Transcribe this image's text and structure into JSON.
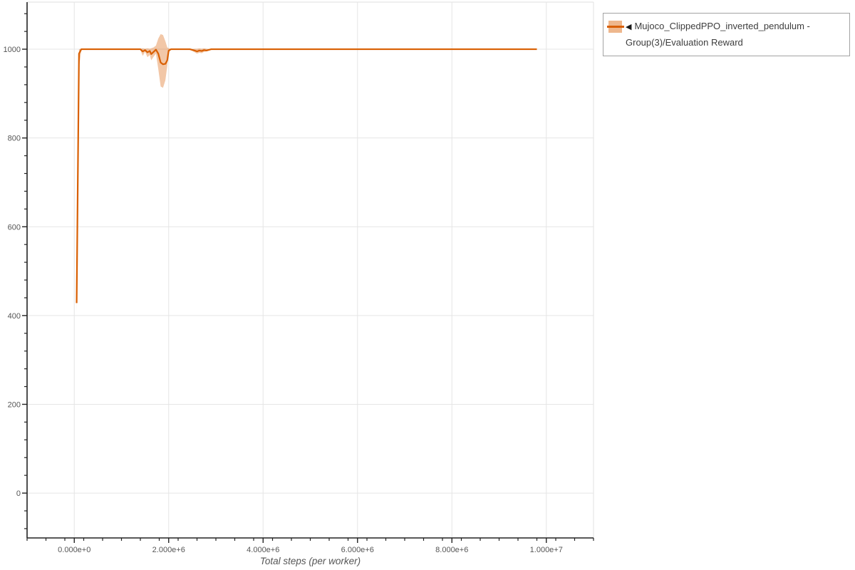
{
  "page": {
    "background": "#ffffff"
  },
  "legend": {
    "toggle_icon": "◀",
    "label": "Mujoco_ClippedPPO_inverted_pendulum - Group(3)/Evaluation Reward",
    "border_color": "#a3a3a3"
  },
  "chart_data": {
    "type": "line",
    "title": "",
    "xlabel": "Total steps (per worker)",
    "ylabel": "",
    "xlim": [
      -1000000,
      11000000
    ],
    "ylim": [
      -101,
      1106
    ],
    "grid": true,
    "legend_position": "top-right-outside",
    "axis_color": "#222222",
    "grid_color": "#e5e5e5",
    "tick_label_color": "#555555",
    "x_ticks": {
      "values": [
        0,
        2000000,
        4000000,
        6000000,
        8000000,
        10000000
      ],
      "labels": [
        "0.000e+0",
        "2.000e+6",
        "4.000e+6",
        "6.000e+6",
        "8.000e+6",
        "1.000e+7"
      ],
      "minor_step": 400000
    },
    "y_ticks": {
      "values": [
        0,
        200,
        400,
        600,
        800,
        1000
      ],
      "labels": [
        "0",
        "200",
        "400",
        "600",
        "800",
        "1000"
      ],
      "minor_step": 40
    },
    "series": [
      {
        "name": "Mujoco_ClippedPPO_inverted_pendulum - Group(3)/Evaluation Reward",
        "color": "#d95f02",
        "band_alpha": 0.35,
        "x": [
          50000,
          100000,
          150000,
          1400000,
          1450000,
          1500000,
          1550000,
          1600000,
          1630000,
          1680000,
          1730000,
          1780000,
          1830000,
          1880000,
          1930000,
          1970000,
          2000000,
          2050000,
          2450000,
          2550000,
          2600000,
          2650000,
          2700000,
          2750000,
          2800000,
          2900000,
          9800000
        ],
        "y": [
          428,
          990,
          1000,
          1000,
          995,
          998,
          993,
          996,
          989,
          994,
          999,
          990,
          970,
          966,
          967,
          975,
          997,
          1000,
          1000,
          997,
          995,
          997,
          996,
          998,
          997,
          1000,
          1000
        ]
      }
    ],
    "bands": [
      {
        "x": [
          50000,
          100000,
          150000
        ],
        "upper": [
          430,
          1000,
          1001
        ],
        "lower": [
          406,
          958,
          998
        ]
      },
      {
        "x": [
          1400000,
          1450000,
          1500000,
          1550000,
          1600000,
          1630000,
          1680000,
          1730000,
          1780000,
          1830000,
          1880000,
          1930000,
          1970000,
          2000000,
          2050000
        ],
        "upper": [
          1001,
          1002,
          1001,
          1002,
          1001,
          1002,
          1004,
          1008,
          1024,
          1034,
          1032,
          1018,
          1004,
          1002,
          1001
        ],
        "lower": [
          998,
          985,
          994,
          982,
          987,
          975,
          983,
          990,
          955,
          916,
          913,
          930,
          962,
          992,
          999
        ]
      },
      {
        "x": [
          2450000,
          2550000,
          2600000,
          2650000,
          2700000,
          2750000,
          2800000,
          2900000
        ],
        "upper": [
          1000,
          1001,
          1001,
          1002,
          1001,
          1002,
          1001,
          1000
        ],
        "lower": [
          999,
          993,
          990,
          992,
          991,
          994,
          995,
          999
        ]
      }
    ]
  }
}
